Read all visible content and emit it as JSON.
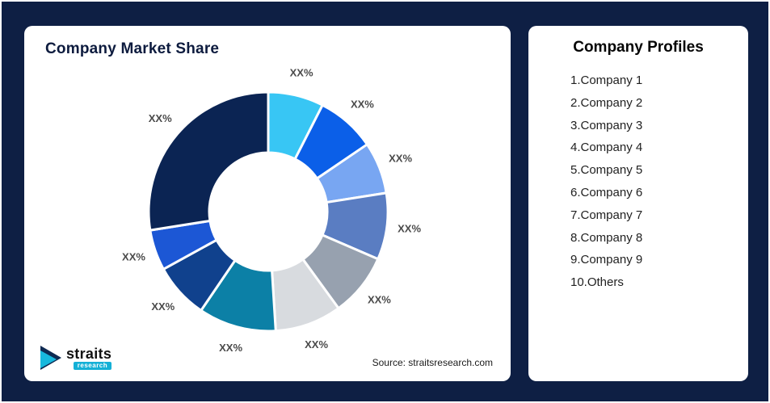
{
  "chart_card": {
    "title": "Company Market Share",
    "source": "Source: straitsresearch.com"
  },
  "logo": {
    "name": "straits",
    "sub": "research",
    "accent_color": "#17B8DD",
    "dark_color": "#0E2A52"
  },
  "profiles": {
    "title": "Company Profiles",
    "items": [
      "1.Company 1",
      "2.Company 2",
      "3.Company 3",
      "4.Company 4",
      "5.Company 5",
      "6.Company 6",
      "7.Company 7",
      "8.Company 8",
      "9.Company 9",
      "10.Others"
    ]
  },
  "chart_data": {
    "type": "pie",
    "subtype": "donut",
    "title": "Company Market Share",
    "labels": [
      "XX%",
      "XX%",
      "XX%",
      "XX%",
      "XX%",
      "XX%",
      "XX%",
      "XX%",
      "XX%",
      "XX%"
    ],
    "values": [
      7.5,
      8,
      7,
      9,
      8.5,
      9,
      10.5,
      7.5,
      5.5,
      27.5
    ],
    "colors": [
      "#38C6F4",
      "#0B5FE8",
      "#78A6F2",
      "#5A7DC2",
      "#97A1AF",
      "#D8DBDF",
      "#0C80A6",
      "#10418D",
      "#1C57D5",
      "#0B2453"
    ],
    "start_angle_deg": 0,
    "direction": "clockwise",
    "inner_radius_ratio": 0.49,
    "legend": "none",
    "source": "Source: straitsresearch.com"
  }
}
